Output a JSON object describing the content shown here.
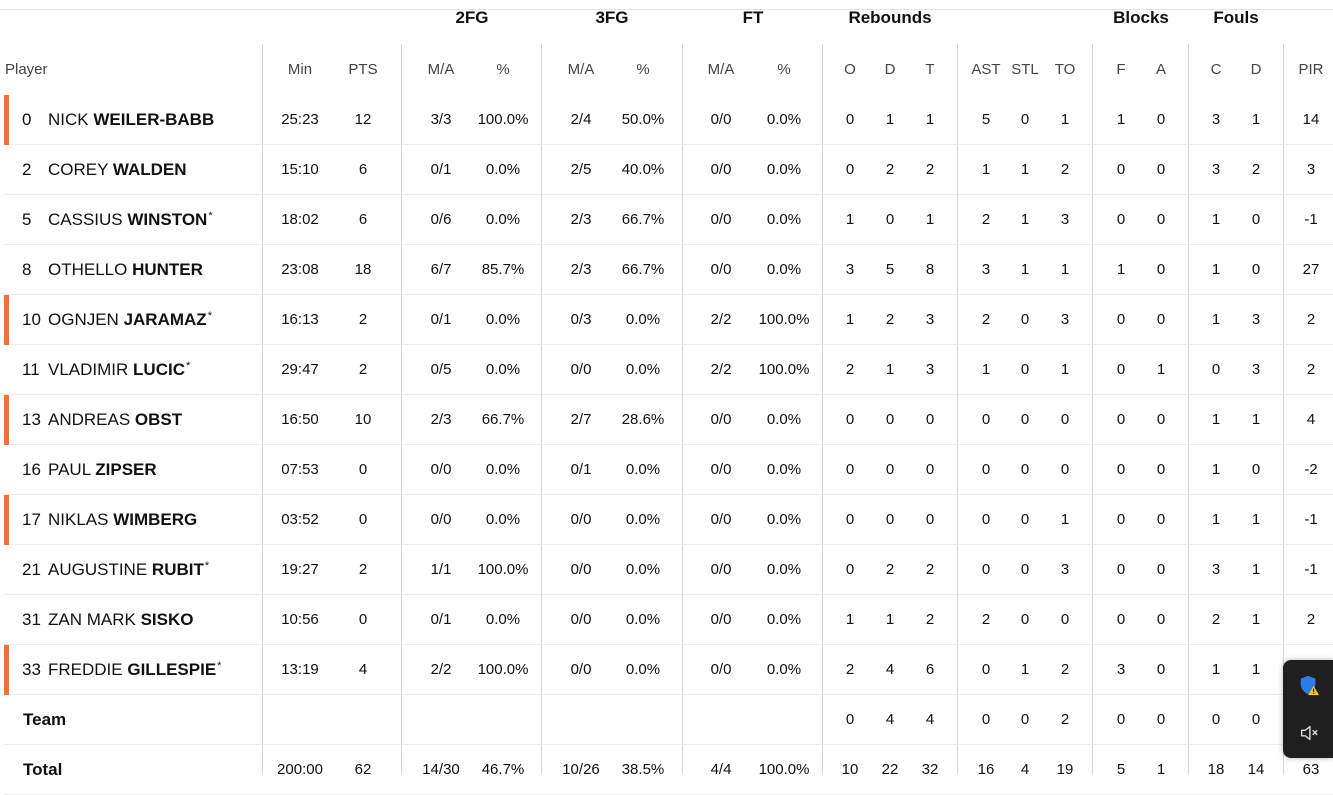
{
  "groups": {
    "fg2": "2FG",
    "fg3": "3FG",
    "ft": "FT",
    "rebounds": "Rebounds",
    "blocks": "Blocks",
    "fouls": "Fouls"
  },
  "columns": {
    "player": "Player",
    "min": "Min",
    "pts": "PTS",
    "fg2_ma": "M/A",
    "fg2_pct": "%",
    "fg3_ma": "M/A",
    "fg3_pct": "%",
    "ft_ma": "M/A",
    "ft_pct": "%",
    "reb_o": "O",
    "reb_d": "D",
    "reb_t": "T",
    "ast": "AST",
    "stl": "STL",
    "to": "TO",
    "blk_f": "F",
    "blk_a": "A",
    "foul_c": "C",
    "foul_d": "D",
    "pir": "PIR"
  },
  "accent_color": "#f4703a",
  "players": [
    {
      "num": "0",
      "first": "NICK",
      "last": "WEILER-BABB",
      "star": "",
      "marked": true,
      "min": "25:23",
      "pts": "12",
      "fg2_ma": "3/3",
      "fg2_pct": "100.0%",
      "fg3_ma": "2/4",
      "fg3_pct": "50.0%",
      "ft_ma": "0/0",
      "ft_pct": "0.0%",
      "reb_o": "0",
      "reb_d": "1",
      "reb_t": "1",
      "ast": "5",
      "stl": "0",
      "to": "1",
      "blk_f": "1",
      "blk_a": "0",
      "foul_c": "3",
      "foul_d": "1",
      "pir": "14"
    },
    {
      "num": "2",
      "first": "COREY",
      "last": "WALDEN",
      "star": "",
      "marked": false,
      "min": "15:10",
      "pts": "6",
      "fg2_ma": "0/1",
      "fg2_pct": "0.0%",
      "fg3_ma": "2/5",
      "fg3_pct": "40.0%",
      "ft_ma": "0/0",
      "ft_pct": "0.0%",
      "reb_o": "0",
      "reb_d": "2",
      "reb_t": "2",
      "ast": "1",
      "stl": "1",
      "to": "2",
      "blk_f": "0",
      "blk_a": "0",
      "foul_c": "3",
      "foul_d": "2",
      "pir": "3"
    },
    {
      "num": "5",
      "first": "CASSIUS",
      "last": "WINSTON",
      "star": "*",
      "marked": false,
      "min": "18:02",
      "pts": "6",
      "fg2_ma": "0/6",
      "fg2_pct": "0.0%",
      "fg3_ma": "2/3",
      "fg3_pct": "66.7%",
      "ft_ma": "0/0",
      "ft_pct": "0.0%",
      "reb_o": "1",
      "reb_d": "0",
      "reb_t": "1",
      "ast": "2",
      "stl": "1",
      "to": "3",
      "blk_f": "0",
      "blk_a": "0",
      "foul_c": "1",
      "foul_d": "0",
      "pir": "-1"
    },
    {
      "num": "8",
      "first": "OTHELLO",
      "last": "HUNTER",
      "star": "",
      "marked": false,
      "min": "23:08",
      "pts": "18",
      "fg2_ma": "6/7",
      "fg2_pct": "85.7%",
      "fg3_ma": "2/3",
      "fg3_pct": "66.7%",
      "ft_ma": "0/0",
      "ft_pct": "0.0%",
      "reb_o": "3",
      "reb_d": "5",
      "reb_t": "8",
      "ast": "3",
      "stl": "1",
      "to": "1",
      "blk_f": "1",
      "blk_a": "0",
      "foul_c": "1",
      "foul_d": "0",
      "pir": "27"
    },
    {
      "num": "10",
      "first": "OGNJEN",
      "last": "JARAMAZ",
      "star": "*",
      "marked": true,
      "min": "16:13",
      "pts": "2",
      "fg2_ma": "0/1",
      "fg2_pct": "0.0%",
      "fg3_ma": "0/3",
      "fg3_pct": "0.0%",
      "ft_ma": "2/2",
      "ft_pct": "100.0%",
      "reb_o": "1",
      "reb_d": "2",
      "reb_t": "3",
      "ast": "2",
      "stl": "0",
      "to": "3",
      "blk_f": "0",
      "blk_a": "0",
      "foul_c": "1",
      "foul_d": "3",
      "pir": "2"
    },
    {
      "num": "11",
      "first": "VLADIMIR",
      "last": "LUCIC",
      "star": "*",
      "marked": false,
      "min": "29:47",
      "pts": "2",
      "fg2_ma": "0/5",
      "fg2_pct": "0.0%",
      "fg3_ma": "0/0",
      "fg3_pct": "0.0%",
      "ft_ma": "2/2",
      "ft_pct": "100.0%",
      "reb_o": "2",
      "reb_d": "1",
      "reb_t": "3",
      "ast": "1",
      "stl": "0",
      "to": "1",
      "blk_f": "0",
      "blk_a": "1",
      "foul_c": "0",
      "foul_d": "3",
      "pir": "2"
    },
    {
      "num": "13",
      "first": "ANDREAS",
      "last": "OBST",
      "star": "",
      "marked": true,
      "min": "16:50",
      "pts": "10",
      "fg2_ma": "2/3",
      "fg2_pct": "66.7%",
      "fg3_ma": "2/7",
      "fg3_pct": "28.6%",
      "ft_ma": "0/0",
      "ft_pct": "0.0%",
      "reb_o": "0",
      "reb_d": "0",
      "reb_t": "0",
      "ast": "0",
      "stl": "0",
      "to": "0",
      "blk_f": "0",
      "blk_a": "0",
      "foul_c": "1",
      "foul_d": "1",
      "pir": "4"
    },
    {
      "num": "16",
      "first": "PAUL",
      "last": "ZIPSER",
      "star": "",
      "marked": false,
      "min": "07:53",
      "pts": "0",
      "fg2_ma": "0/0",
      "fg2_pct": "0.0%",
      "fg3_ma": "0/1",
      "fg3_pct": "0.0%",
      "ft_ma": "0/0",
      "ft_pct": "0.0%",
      "reb_o": "0",
      "reb_d": "0",
      "reb_t": "0",
      "ast": "0",
      "stl": "0",
      "to": "0",
      "blk_f": "0",
      "blk_a": "0",
      "foul_c": "1",
      "foul_d": "0",
      "pir": "-2"
    },
    {
      "num": "17",
      "first": "NIKLAS",
      "last": "WIMBERG",
      "star": "",
      "marked": true,
      "min": "03:52",
      "pts": "0",
      "fg2_ma": "0/0",
      "fg2_pct": "0.0%",
      "fg3_ma": "0/0",
      "fg3_pct": "0.0%",
      "ft_ma": "0/0",
      "ft_pct": "0.0%",
      "reb_o": "0",
      "reb_d": "0",
      "reb_t": "0",
      "ast": "0",
      "stl": "0",
      "to": "1",
      "blk_f": "0",
      "blk_a": "0",
      "foul_c": "1",
      "foul_d": "1",
      "pir": "-1"
    },
    {
      "num": "21",
      "first": "AUGUSTINE",
      "last": "RUBIT",
      "star": "*",
      "marked": false,
      "min": "19:27",
      "pts": "2",
      "fg2_ma": "1/1",
      "fg2_pct": "100.0%",
      "fg3_ma": "0/0",
      "fg3_pct": "0.0%",
      "ft_ma": "0/0",
      "ft_pct": "0.0%",
      "reb_o": "0",
      "reb_d": "2",
      "reb_t": "2",
      "ast": "0",
      "stl": "0",
      "to": "3",
      "blk_f": "0",
      "blk_a": "0",
      "foul_c": "3",
      "foul_d": "1",
      "pir": "-1"
    },
    {
      "num": "31",
      "first": "ZAN MARK",
      "last": "SISKO",
      "star": "",
      "marked": false,
      "min": "10:56",
      "pts": "0",
      "fg2_ma": "0/1",
      "fg2_pct": "0.0%",
      "fg3_ma": "0/0",
      "fg3_pct": "0.0%",
      "ft_ma": "0/0",
      "ft_pct": "0.0%",
      "reb_o": "1",
      "reb_d": "1",
      "reb_t": "2",
      "ast": "2",
      "stl": "0",
      "to": "0",
      "blk_f": "0",
      "blk_a": "0",
      "foul_c": "2",
      "foul_d": "1",
      "pir": "2"
    },
    {
      "num": "33",
      "first": "FREDDIE",
      "last": "GILLESPIE",
      "star": "*",
      "marked": true,
      "min": "13:19",
      "pts": "4",
      "fg2_ma": "2/2",
      "fg2_pct": "100.0%",
      "fg3_ma": "0/0",
      "fg3_pct": "0.0%",
      "ft_ma": "0/0",
      "ft_pct": "0.0%",
      "reb_o": "2",
      "reb_d": "4",
      "reb_t": "6",
      "ast": "0",
      "stl": "1",
      "to": "2",
      "blk_f": "3",
      "blk_a": "0",
      "foul_c": "1",
      "foul_d": "1",
      "pir": ""
    }
  ],
  "team": {
    "label": "Team",
    "min": "",
    "pts": "",
    "fg2_ma": "",
    "fg2_pct": "",
    "fg3_ma": "",
    "fg3_pct": "",
    "ft_ma": "",
    "ft_pct": "",
    "reb_o": "0",
    "reb_d": "4",
    "reb_t": "4",
    "ast": "0",
    "stl": "0",
    "to": "2",
    "blk_f": "0",
    "blk_a": "0",
    "foul_c": "0",
    "foul_d": "0",
    "pir": ""
  },
  "total": {
    "label": "Total",
    "min": "200:00",
    "pts": "62",
    "fg2_ma": "14/30",
    "fg2_pct": "46.7%",
    "fg3_ma": "10/26",
    "fg3_pct": "38.5%",
    "ft_ma": "4/4",
    "ft_pct": "100.0%",
    "reb_o": "10",
    "reb_d": "22",
    "reb_t": "32",
    "ast": "16",
    "stl": "4",
    "to": "19",
    "blk_f": "5",
    "blk_a": "1",
    "foul_c": "18",
    "foul_d": "14",
    "pir": "63"
  },
  "overlay": {
    "shield_icon": "shield-warning-icon",
    "speaker_icon": "speaker-muted-icon"
  }
}
